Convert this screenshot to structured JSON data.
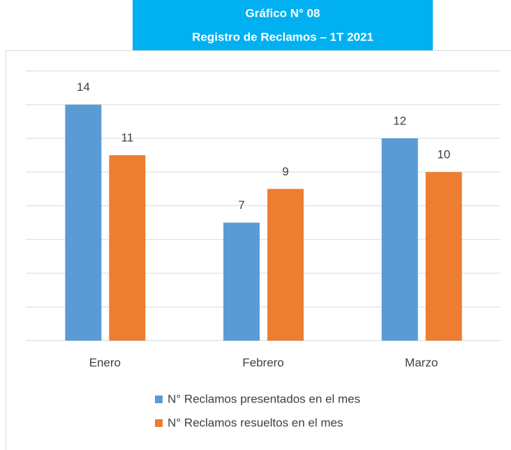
{
  "chart_data": {
    "type": "bar",
    "title": "Gráfico N° 08",
    "subtitle": "Registro de Reclamos – 1T 2021",
    "categories": [
      "Enero",
      "Febrero",
      "Marzo"
    ],
    "series": [
      {
        "name": "N° Reclamos presentados en el mes",
        "color": "#5b9bd5",
        "values": [
          14,
          7,
          12
        ]
      },
      {
        "name": "N° Reclamos resueltos en el mes",
        "color": "#ed7d31",
        "values": [
          11,
          9,
          10
        ]
      }
    ],
    "ylim": [
      0,
      16
    ],
    "yticks": [
      0,
      2,
      4,
      6,
      8,
      10,
      12,
      14,
      16
    ],
    "grid": true,
    "legend": "bottom"
  }
}
